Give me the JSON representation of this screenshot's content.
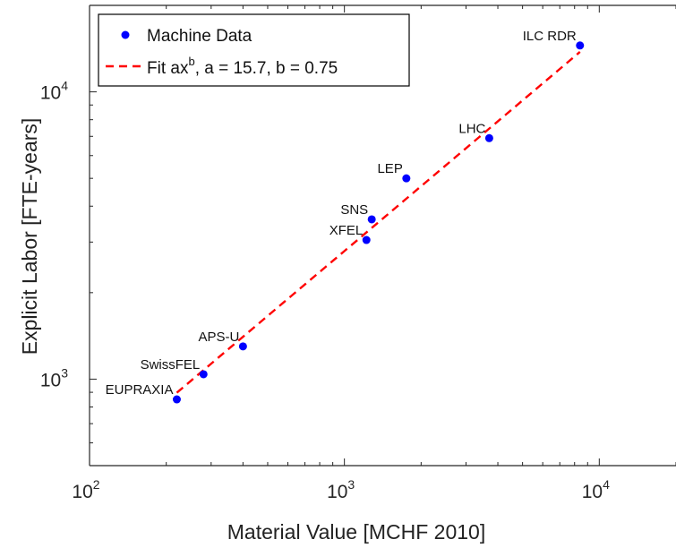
{
  "chart_data": {
    "type": "scatter",
    "xlabel": "Material Value [MCHF 2010]",
    "ylabel": "Explicit Labor [FTE-years]",
    "xscale": "log",
    "yscale": "log",
    "xlim": [
      100,
      20000
    ],
    "ylim": [
      500,
      20000
    ],
    "x_ticks": [
      {
        "value": 100,
        "base": "10",
        "exp": "2"
      },
      {
        "value": 1000,
        "base": "10",
        "exp": "3"
      },
      {
        "value": 10000,
        "base": "10",
        "exp": "4"
      }
    ],
    "y_ticks": [
      {
        "value": 1000,
        "base": "10",
        "exp": "3"
      },
      {
        "value": 10000,
        "base": "10",
        "exp": "4"
      }
    ],
    "grid": false,
    "legend_position": "top-left",
    "series": [
      {
        "name": "Machine Data",
        "color": "#0000ff",
        "points": [
          {
            "label": "EUPRAXIA",
            "x": 220,
            "y": 850
          },
          {
            "label": "SwissFEL",
            "x": 280,
            "y": 1040
          },
          {
            "label": "APS-U",
            "x": 400,
            "y": 1300
          },
          {
            "label": "XFEL",
            "x": 1220,
            "y": 3050
          },
          {
            "label": "SNS",
            "x": 1280,
            "y": 3600
          },
          {
            "label": "LEP",
            "x": 1750,
            "y": 5000
          },
          {
            "label": "LHC",
            "x": 3700,
            "y": 6900
          },
          {
            "label": "ILC RDR",
            "x": 8400,
            "y": 14500
          }
        ]
      }
    ],
    "fit": {
      "name_prefix": "Fit ax",
      "name_sup": "b",
      "name_suffix": ", a = 15.7, b = 0.75",
      "a": 15.7,
      "b": 0.75,
      "x_range": [
        220,
        8400
      ],
      "color": "#ff0000",
      "style": "dashed"
    }
  }
}
